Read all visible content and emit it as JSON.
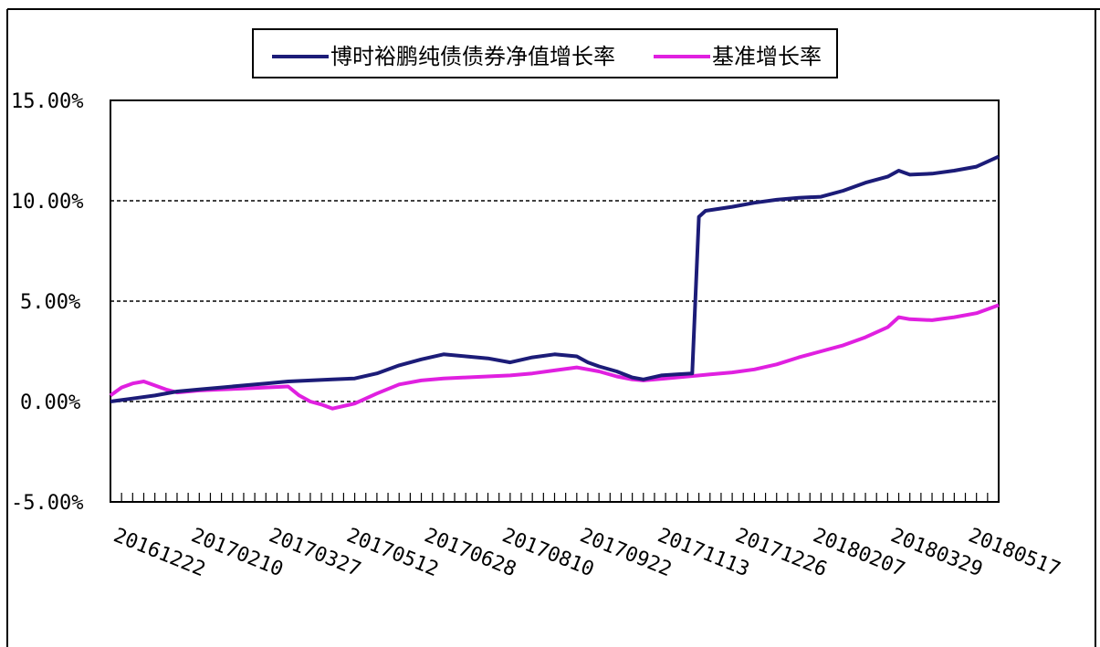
{
  "chart_data": {
    "type": "line",
    "title": "",
    "xlabel": "",
    "ylabel": "",
    "ylim": [
      -5,
      15
    ],
    "yticks": [
      -5,
      0,
      5,
      10,
      15
    ],
    "ytick_labels": [
      "-5.00%",
      "0.00%",
      "5.00%",
      "10.00%",
      "15.00%"
    ],
    "grid_values": [
      0,
      10,
      5
    ],
    "grid": "horizontal dashed",
    "legend_position": "top",
    "x_tick_labels": [
      "20161222",
      "20170210",
      "20170327",
      "20170512",
      "20170628",
      "20170810",
      "20170922",
      "20171113",
      "20171226",
      "20180207",
      "20180329",
      "20180517"
    ],
    "x_tick_positions": [
      0,
      35,
      70,
      105,
      140,
      175,
      210,
      245,
      280,
      315,
      350,
      385
    ],
    "x_range": [
      0,
      400
    ],
    "series": [
      {
        "name": "博时裕鹏纯债债券净值增长率",
        "color": "#1c1c78",
        "x": [
          0,
          10,
          20,
          30,
          40,
          50,
          60,
          70,
          80,
          90,
          100,
          110,
          120,
          130,
          140,
          150,
          160,
          170,
          180,
          190,
          200,
          210,
          215,
          220,
          228,
          235,
          240,
          248,
          255,
          262,
          265,
          268,
          280,
          290,
          300,
          310,
          320,
          330,
          340,
          350,
          355,
          360,
          370,
          380,
          390,
          400
        ],
        "y": [
          0.0,
          0.15,
          0.3,
          0.5,
          0.6,
          0.7,
          0.8,
          0.9,
          1.0,
          1.05,
          1.1,
          1.15,
          1.4,
          1.8,
          2.1,
          2.35,
          2.25,
          2.15,
          1.95,
          2.2,
          2.35,
          2.25,
          1.95,
          1.75,
          1.5,
          1.2,
          1.1,
          1.3,
          1.35,
          1.4,
          9.2,
          9.5,
          9.7,
          9.9,
          10.05,
          10.15,
          10.2,
          10.5,
          10.9,
          11.2,
          11.5,
          11.3,
          11.35,
          11.5,
          11.7,
          12.2
        ]
      },
      {
        "name": "基准增长率",
        "color": "#e020e0",
        "x": [
          0,
          5,
          10,
          15,
          20,
          25,
          30,
          40,
          50,
          60,
          70,
          80,
          85,
          90,
          95,
          100,
          110,
          120,
          130,
          140,
          150,
          160,
          170,
          180,
          190,
          200,
          210,
          215,
          220,
          228,
          235,
          240,
          250,
          260,
          270,
          280,
          290,
          300,
          310,
          320,
          330,
          340,
          350,
          355,
          360,
          370,
          380,
          390,
          400
        ],
        "y": [
          0.3,
          0.7,
          0.9,
          1.0,
          0.8,
          0.6,
          0.45,
          0.55,
          0.6,
          0.65,
          0.7,
          0.75,
          0.3,
          0.0,
          -0.15,
          -0.35,
          -0.1,
          0.4,
          0.85,
          1.05,
          1.15,
          1.2,
          1.25,
          1.3,
          1.4,
          1.55,
          1.7,
          1.6,
          1.5,
          1.25,
          1.1,
          1.05,
          1.15,
          1.25,
          1.35,
          1.45,
          1.6,
          1.85,
          2.2,
          2.5,
          2.8,
          3.2,
          3.7,
          4.2,
          4.1,
          4.05,
          4.2,
          4.4,
          4.8
        ]
      }
    ]
  }
}
